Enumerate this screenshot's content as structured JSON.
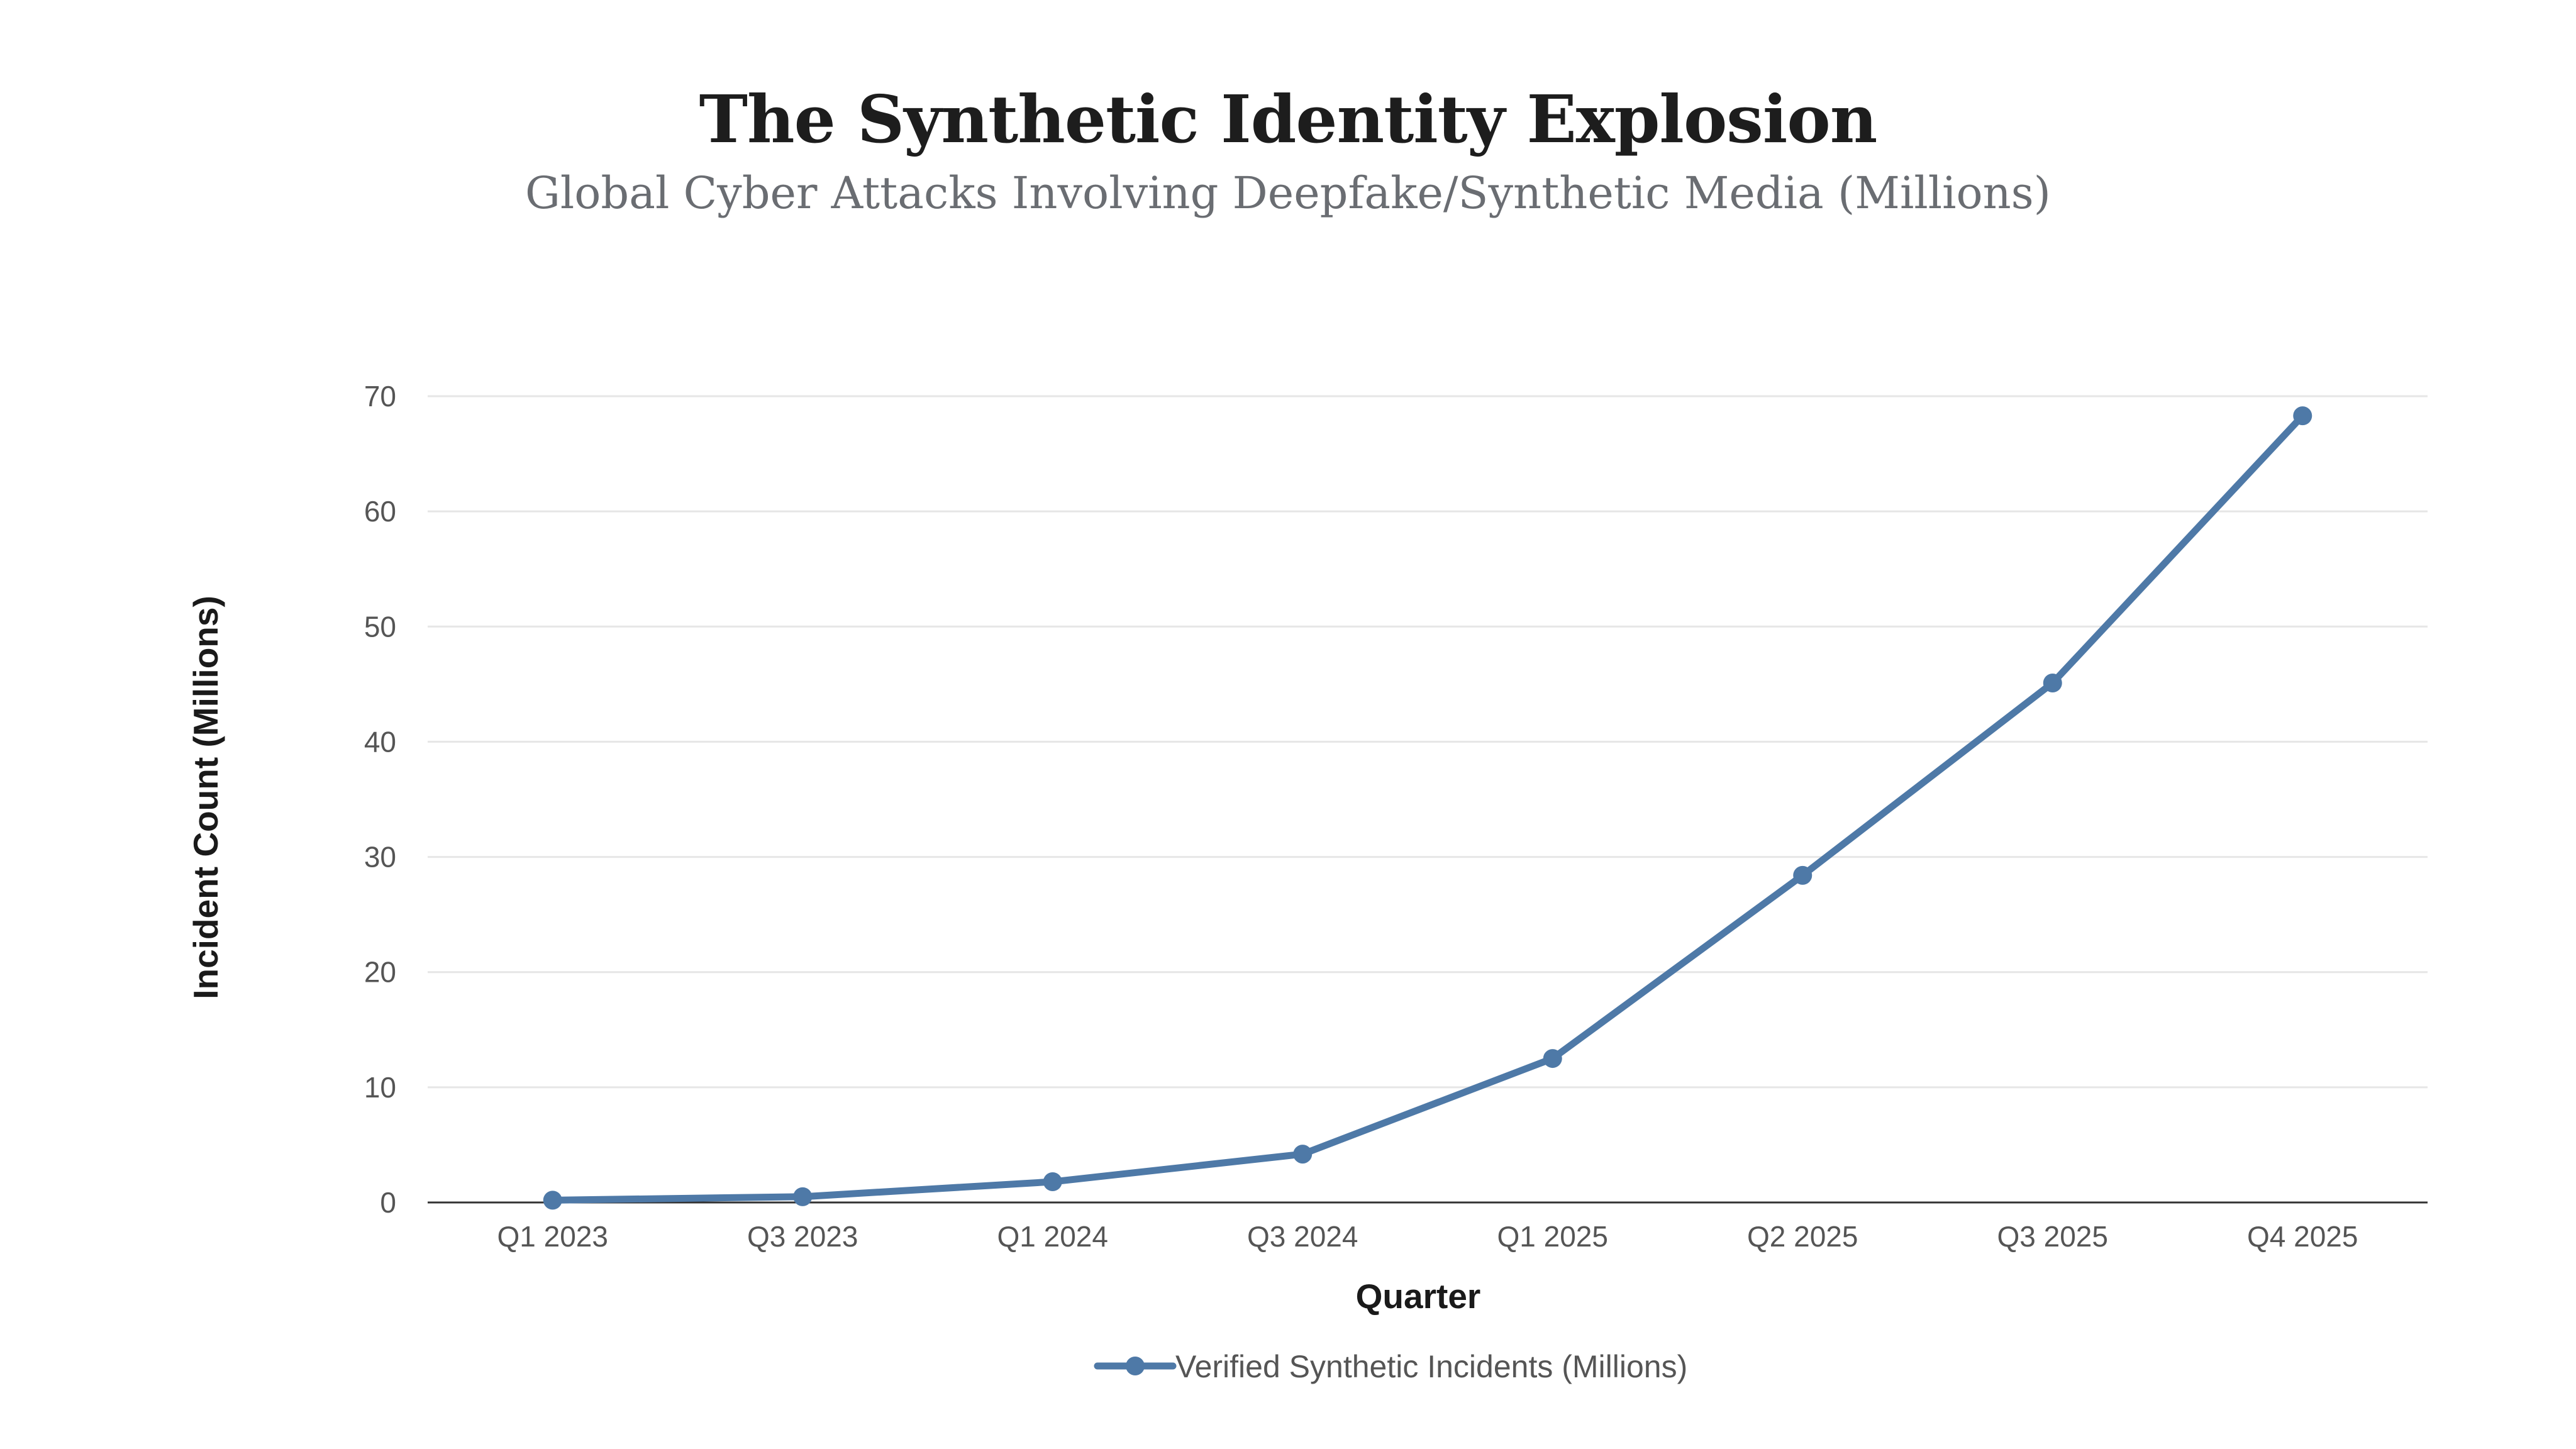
{
  "title": "The Synthetic Identity Explosion",
  "subtitle": "Global Cyber Attacks Involving Deepfake/Synthetic Media (Millions)",
  "colors": {
    "series": "#4e79a7",
    "grid": "#e6e6e6",
    "axis": "#333333"
  },
  "chart_data": {
    "type": "line",
    "title": "The Synthetic Identity Explosion",
    "subtitle": "Global Cyber Attacks Involving Deepfake/Synthetic Media (Millions)",
    "xlabel": "Quarter",
    "ylabel": "Incident Count (Millions)",
    "categories": [
      "Q1 2023",
      "Q3 2023",
      "Q1 2024",
      "Q3 2024",
      "Q1 2025",
      "Q2 2025",
      "Q3 2025",
      "Q4 2025"
    ],
    "series": [
      {
        "name": "Verified Synthetic Incidents (Millions)",
        "values": [
          0.2,
          0.5,
          1.8,
          4.2,
          12.5,
          28.4,
          45.1,
          68.3
        ]
      }
    ],
    "ylim": [
      0,
      70
    ],
    "yticks": [
      0,
      10,
      20,
      30,
      40,
      50,
      60,
      70
    ],
    "grid": true,
    "legend": "bottom-center"
  }
}
